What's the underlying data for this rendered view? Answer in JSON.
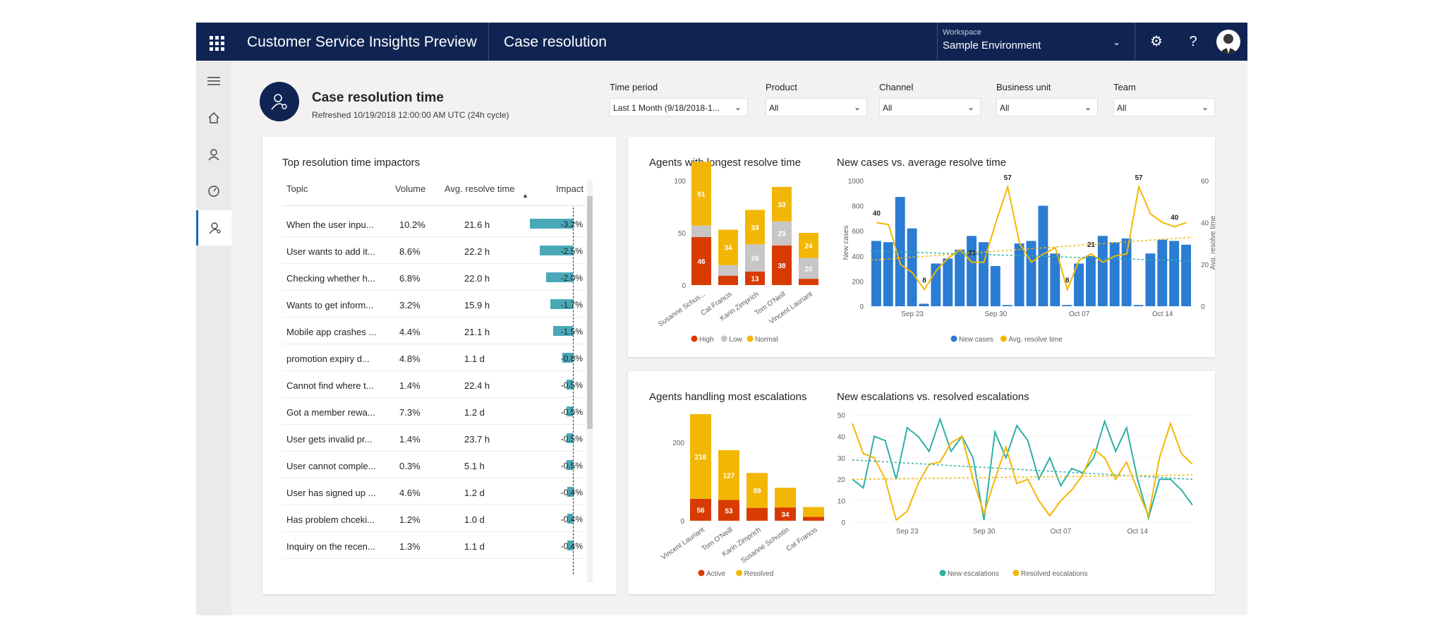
{
  "header": {
    "app_title": "Customer Service Insights Preview",
    "page_name": "Case resolution",
    "workspace_label": "Workspace",
    "workspace_value": "Sample Environment"
  },
  "hero": {
    "title": "Case resolution time",
    "subtitle": "Refreshed 10/19/2018 12:00:00 AM UTC (24h cycle)"
  },
  "filters": [
    {
      "label": "Time period",
      "value": "Last 1 Month (9/18/2018-1..."
    },
    {
      "label": "Product",
      "value": "All"
    },
    {
      "label": "Channel",
      "value": "All"
    },
    {
      "label": "Business unit",
      "value": "All"
    },
    {
      "label": "Team",
      "value": "All"
    }
  ],
  "impactors": {
    "title": "Top resolution time impactors",
    "columns": {
      "topic": "Topic",
      "volume": "Volume",
      "avg": "Avg. resolve time",
      "impact": "Impact"
    },
    "rows": [
      {
        "topic": "When the user inpu...",
        "volume": "10.2%",
        "avg": "21.6 h",
        "impact": "-3.2%",
        "frac": 0.32
      },
      {
        "topic": "User wants to add it...",
        "volume": "8.6%",
        "avg": "22.2 h",
        "impact": "-2.5%",
        "frac": 0.25
      },
      {
        "topic": "Checking whether h...",
        "volume": "6.8%",
        "avg": "22.0 h",
        "impact": "-2.0%",
        "frac": 0.2
      },
      {
        "topic": "Wants to get inform...",
        "volume": "3.2%",
        "avg": "15.9 h",
        "impact": "-1.7%",
        "frac": 0.17
      },
      {
        "topic": "Mobile app crashes ...",
        "volume": "4.4%",
        "avg": "21.1 h",
        "impact": "-1.5%",
        "frac": 0.15
      },
      {
        "topic": "promotion expiry d...",
        "volume": "4.8%",
        "avg": "1.1 d",
        "impact": "-0.8%",
        "frac": 0.08
      },
      {
        "topic": "Cannot find where t...",
        "volume": "1.4%",
        "avg": "22.4 h",
        "impact": "-0.5%",
        "frac": 0.05
      },
      {
        "topic": "Got a member rewa...",
        "volume": "7.3%",
        "avg": "1.2 d",
        "impact": "-0.5%",
        "frac": 0.05
      },
      {
        "topic": "User gets invalid pr...",
        "volume": "1.4%",
        "avg": "23.7 h",
        "impact": "-0.5%",
        "frac": 0.05
      },
      {
        "topic": "User cannot comple...",
        "volume": "0.3%",
        "avg": "5.1 h",
        "impact": "-0.5%",
        "frac": 0.05
      },
      {
        "topic": "User has signed up ...",
        "volume": "4.6%",
        "avg": "1.2 d",
        "impact": "-0.4%",
        "frac": 0.04
      },
      {
        "topic": "Has problem chceki...",
        "volume": "1.2%",
        "avg": "1.0 d",
        "impact": "-0.4%",
        "frac": 0.04
      },
      {
        "topic": "Inquiry on the recen...",
        "volume": "1.3%",
        "avg": "1.1 d",
        "impact": "-0.4%",
        "frac": 0.04
      }
    ]
  },
  "colors": {
    "high": "#d83b01",
    "low": "#c8c6c4",
    "normal": "#f2b705",
    "blue": "#2b7cd3",
    "teal": "#2eb0a5",
    "yellow": "#f2b705"
  },
  "chart_data": [
    {
      "type": "bar",
      "stacked": true,
      "title": "Agents with longest resolve time",
      "categories": [
        "Susanne Schus...",
        "Cat Francis",
        "Karin Zimprich",
        "Tom O'Neill",
        "Vincent Lauriant"
      ],
      "series": [
        {
          "name": "High",
          "values": [
            46,
            9,
            13,
            38,
            6
          ]
        },
        {
          "name": "Low",
          "values": [
            11,
            10,
            26,
            23,
            20
          ]
        },
        {
          "name": "Normal",
          "values": [
            61,
            34,
            33,
            33,
            24
          ]
        }
      ],
      "data_labels": {
        "High": [
          "46",
          "",
          "13",
          "38",
          ""
        ],
        "Low": [
          "",
          "",
          "26",
          "23",
          "20"
        ],
        "Normal": [
          "61",
          "34",
          "33",
          "33",
          "24"
        ]
      },
      "yticks": [
        "0",
        "50",
        "100"
      ],
      "ylim": [
        0,
        100
      ],
      "legend": [
        "High",
        "Low",
        "Normal"
      ]
    },
    {
      "type": "bar+line",
      "title": "New cases vs. average resolve time",
      "ylabel": "New cases",
      "y2label": "Avg. resolve time",
      "yticks": [
        "0",
        "200",
        "400",
        "600",
        "800",
        "1000"
      ],
      "y2ticks": [
        "0",
        "20",
        "40",
        "60"
      ],
      "ylim": [
        0,
        1000
      ],
      "y2lim": [
        0,
        60
      ],
      "xticks": [
        "Sep 23",
        "Sep 30",
        "Oct 07",
        "Oct 14"
      ],
      "new_cases": [
        520,
        510,
        870,
        620,
        20,
        340,
        380,
        450,
        560,
        510,
        320,
        10,
        500,
        520,
        800,
        420,
        10,
        340,
        400,
        560,
        510,
        540,
        10,
        420,
        530,
        520,
        490
      ],
      "avg_resolve": [
        40,
        39,
        20,
        16,
        8,
        17,
        23,
        27,
        21,
        21,
        40,
        57,
        30,
        21,
        25,
        28,
        8,
        22,
        25,
        21,
        24,
        25,
        57,
        44,
        40,
        38,
        40
      ],
      "point_labels": [
        "40",
        "8",
        "21",
        "57",
        "8",
        "21",
        "57",
        "40"
      ],
      "legend": [
        "New cases",
        "Avg. resolve time"
      ]
    },
    {
      "type": "bar",
      "stacked": true,
      "title": "Agents handling most escalations",
      "categories": [
        "Vincent Lauriant",
        "Tom O'Neill",
        "Karin Zimprich",
        "Susanne Schustin",
        "Cat Francis"
      ],
      "series": [
        {
          "name": "Active",
          "values": [
            56,
            53,
            33,
            34,
            10
          ]
        },
        {
          "name": "Resolved",
          "values": [
            216,
            127,
            89,
            50,
            25
          ]
        }
      ],
      "data_labels": {
        "Active": [
          "56",
          "53",
          "",
          "34",
          ""
        ],
        "Resolved": [
          "216",
          "127",
          "89",
          "",
          ""
        ]
      },
      "yticks": [
        "0",
        "200"
      ],
      "ylim": [
        0,
        270
      ],
      "legend": [
        "Active",
        "Resolved"
      ]
    },
    {
      "type": "line",
      "title": "New escalations vs. resolved escalations",
      "yticks": [
        "0",
        "10",
        "20",
        "30",
        "40",
        "50"
      ],
      "ylim": [
        0,
        50
      ],
      "xticks": [
        "Sep 23",
        "Sep 30",
        "Oct 07",
        "Oct 14"
      ],
      "series": [
        {
          "name": "New escalations",
          "values": [
            20,
            16,
            40,
            38,
            20,
            44,
            40,
            33,
            48,
            33,
            40,
            30,
            1,
            42,
            30,
            45,
            38,
            20,
            30,
            17,
            25,
            23,
            30,
            47,
            33,
            44,
            20,
            2,
            20,
            20,
            15,
            8
          ]
        },
        {
          "name": "Resolved escalations",
          "values": [
            46,
            32,
            30,
            20,
            1,
            5,
            18,
            27,
            28,
            37,
            40,
            20,
            4,
            20,
            35,
            18,
            20,
            10,
            3,
            10,
            15,
            22,
            34,
            30,
            20,
            28,
            15,
            3,
            30,
            46,
            32,
            27
          ]
        }
      ],
      "trend_new": [
        29,
        20
      ],
      "trend_resolved": [
        20,
        22
      ],
      "legend": [
        "New escalations",
        "Resolved escalations"
      ]
    }
  ]
}
